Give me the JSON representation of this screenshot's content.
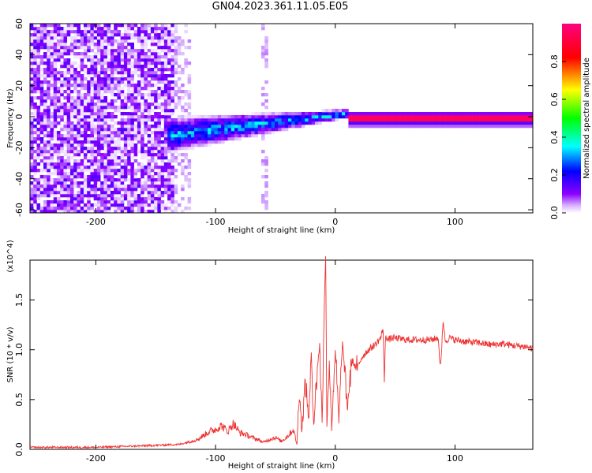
{
  "title": "GN04.2023.361.11.05.E05",
  "chart_data": [
    {
      "type": "heatmap",
      "title": "GN04.2023.361.11.05.E05",
      "xlabel": "Height of straight line (km)",
      "ylabel": "Frequency (Hz)",
      "xlim": [
        -255,
        165
      ],
      "ylim": [
        -62,
        60
      ],
      "xticks": [
        -200,
        -100,
        0,
        100
      ],
      "yticks": [
        -60,
        -40,
        -20,
        0,
        20,
        40,
        60
      ],
      "colorbar": {
        "label": "Normalized spectral amplitude",
        "range": [
          0.0,
          1.0
        ],
        "ticks": [
          "0.0",
          "0.2",
          "0.4",
          "0.6",
          "0.8"
        ],
        "colors": [
          "#ffffff",
          "#8800ff",
          "#0000ff",
          "#00ffff",
          "#00ff00",
          "#ffff00",
          "#ff0000",
          "#ff0080"
        ]
      },
      "features": [
        {
          "desc": "broadband noise",
          "x_range": [
            -255,
            -135
          ],
          "freq_range": [
            -60,
            60
          ],
          "amplitude": 0.1
        },
        {
          "desc": "sparse noise",
          "x_range": [
            -135,
            -120
          ],
          "freq_range": [
            -60,
            60
          ],
          "amplitude": 0.02
        },
        {
          "desc": "noise column",
          "x_range": [
            -62,
            -55
          ],
          "freq_range": [
            -60,
            60
          ],
          "amplitude": 0.03
        },
        {
          "desc": "converging signal band",
          "x_range": [
            -140,
            10
          ],
          "freq_center_range": [
            -12,
            2
          ],
          "amplitude": 0.3
        },
        {
          "desc": "strong narrowband signal",
          "x_range": [
            10,
            165
          ],
          "freq": -1.5,
          "amplitude": 0.95
        }
      ]
    },
    {
      "type": "line",
      "xlabel": "Height of straight line (km)",
      "ylabel": "SNR (10 * v/v)",
      "y_multiplier": "(x10^4)",
      "xlim": [
        -255,
        165
      ],
      "ylim": [
        0,
        1.9
      ],
      "xticks": [
        -200,
        -100,
        0,
        100
      ],
      "yticks": [
        0.0,
        0.5,
        1.0,
        1.5
      ],
      "color": "#ee3333",
      "series": [
        {
          "x": [
            -255,
            -200,
            -150,
            -130,
            -115,
            -105,
            -100,
            -95,
            -90,
            -85,
            -80,
            -75,
            -70,
            -65,
            -60,
            -55,
            -50,
            -45,
            -40,
            -35,
            -32,
            -30,
            -28,
            -25,
            -22,
            -20,
            -18,
            -15,
            -13,
            -11,
            -9,
            -8,
            -7,
            -5,
            -3,
            0,
            3,
            6,
            10,
            14,
            18,
            22,
            26,
            30,
            34,
            38,
            40,
            41,
            42,
            44,
            48,
            60,
            80,
            86,
            88,
            90,
            92,
            95,
            100,
            110,
            120,
            130,
            140,
            150,
            160,
            165
          ],
          "y": [
            0.02,
            0.02,
            0.04,
            0.05,
            0.1,
            0.18,
            0.2,
            0.24,
            0.18,
            0.26,
            0.17,
            0.15,
            0.12,
            0.1,
            0.07,
            0.1,
            0.12,
            0.08,
            0.13,
            0.2,
            0.05,
            0.62,
            0.18,
            0.68,
            0.3,
            0.98,
            0.25,
            0.82,
            1.05,
            0.28,
            1.55,
            1.92,
            0.28,
            0.9,
            0.22,
            1.0,
            0.28,
            1.08,
            0.42,
            0.9,
            0.8,
            0.92,
            0.98,
            1.02,
            1.06,
            1.12,
            1.22,
            0.63,
            1.15,
            1.1,
            1.12,
            1.1,
            1.1,
            1.12,
            0.78,
            1.3,
            1.08,
            1.12,
            1.1,
            1.08,
            1.07,
            1.05,
            1.06,
            1.04,
            1.03,
            1.01
          ]
        }
      ]
    }
  ]
}
